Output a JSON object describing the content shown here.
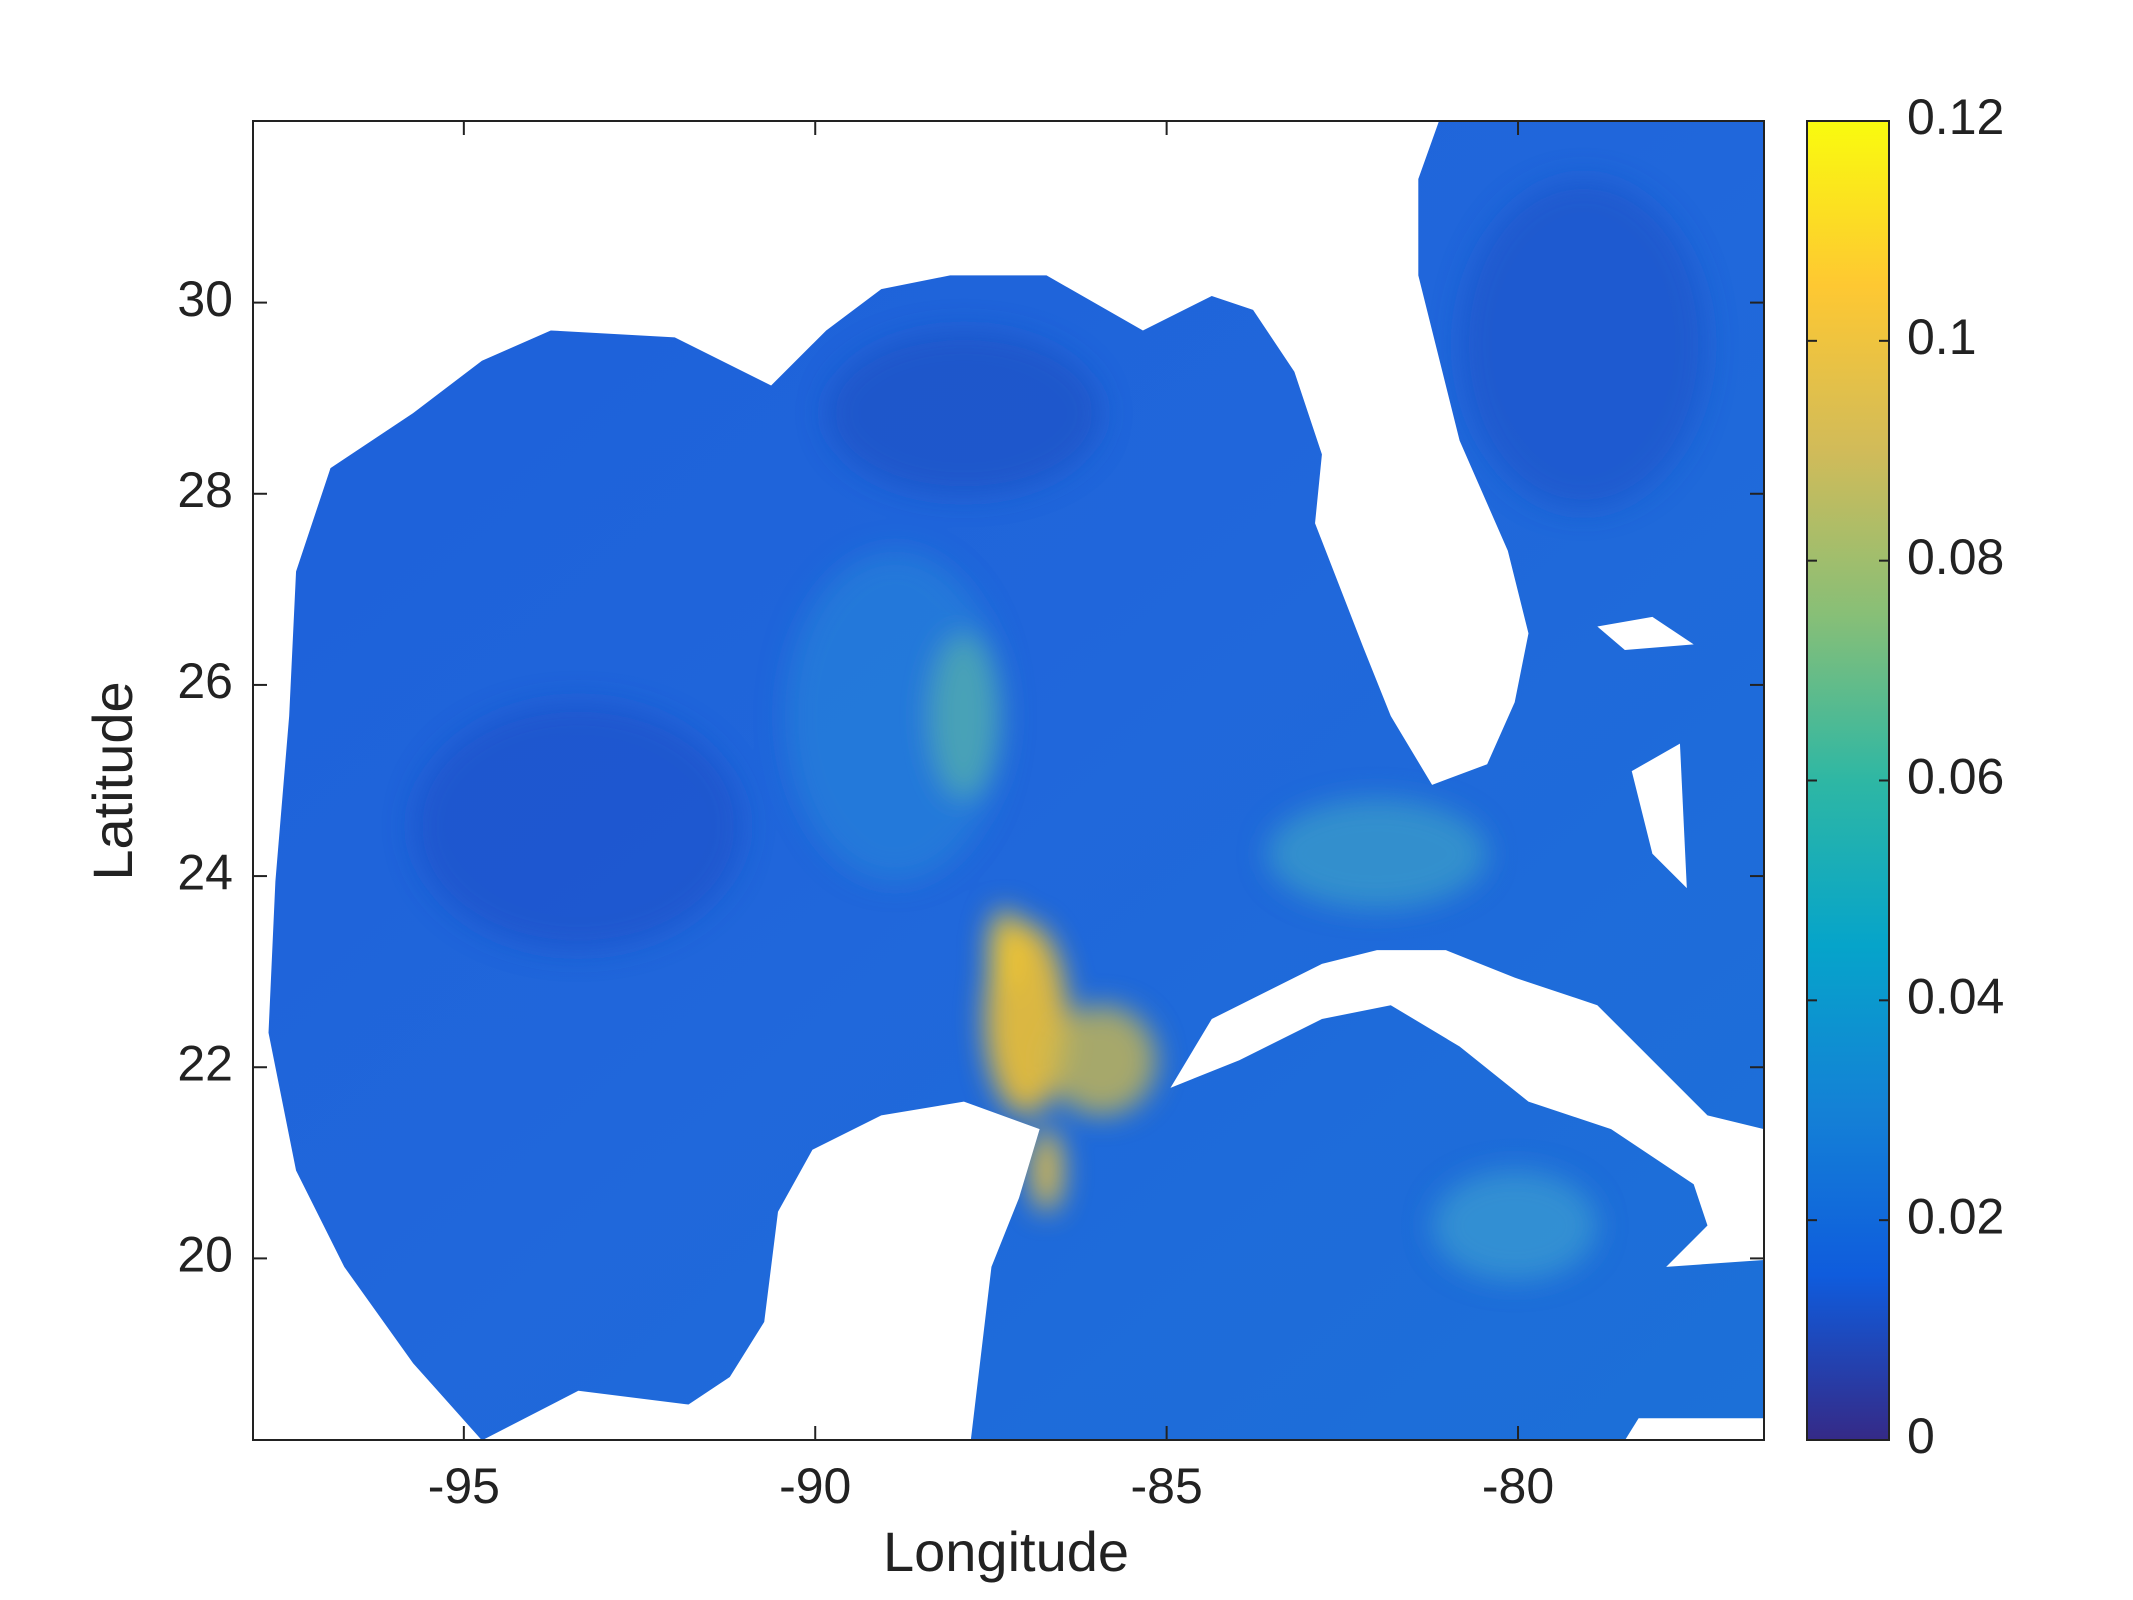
{
  "chart_data": {
    "type": "heatmap",
    "xlabel": "Longitude",
    "ylabel": "Latitude",
    "xlim": [
      -98,
      -76.5
    ],
    "ylim": [
      18.1,
      31.9
    ],
    "xticks": [
      -95,
      -90,
      -85,
      -80
    ],
    "yticks": [
      20,
      22,
      24,
      26,
      28,
      30
    ],
    "colorbar": {
      "lim": [
        0,
        0.12
      ],
      "ticks": [
        0,
        0.02,
        0.04,
        0.06,
        0.08,
        0.1,
        0.12
      ],
      "colormap": [
        "#352a87",
        "#0f5cdd",
        "#1481d6",
        "#06a4ca",
        "#2eb7a4",
        "#87bf77",
        "#d1bb59",
        "#fec832",
        "#f9fb0e"
      ]
    }
  }
}
